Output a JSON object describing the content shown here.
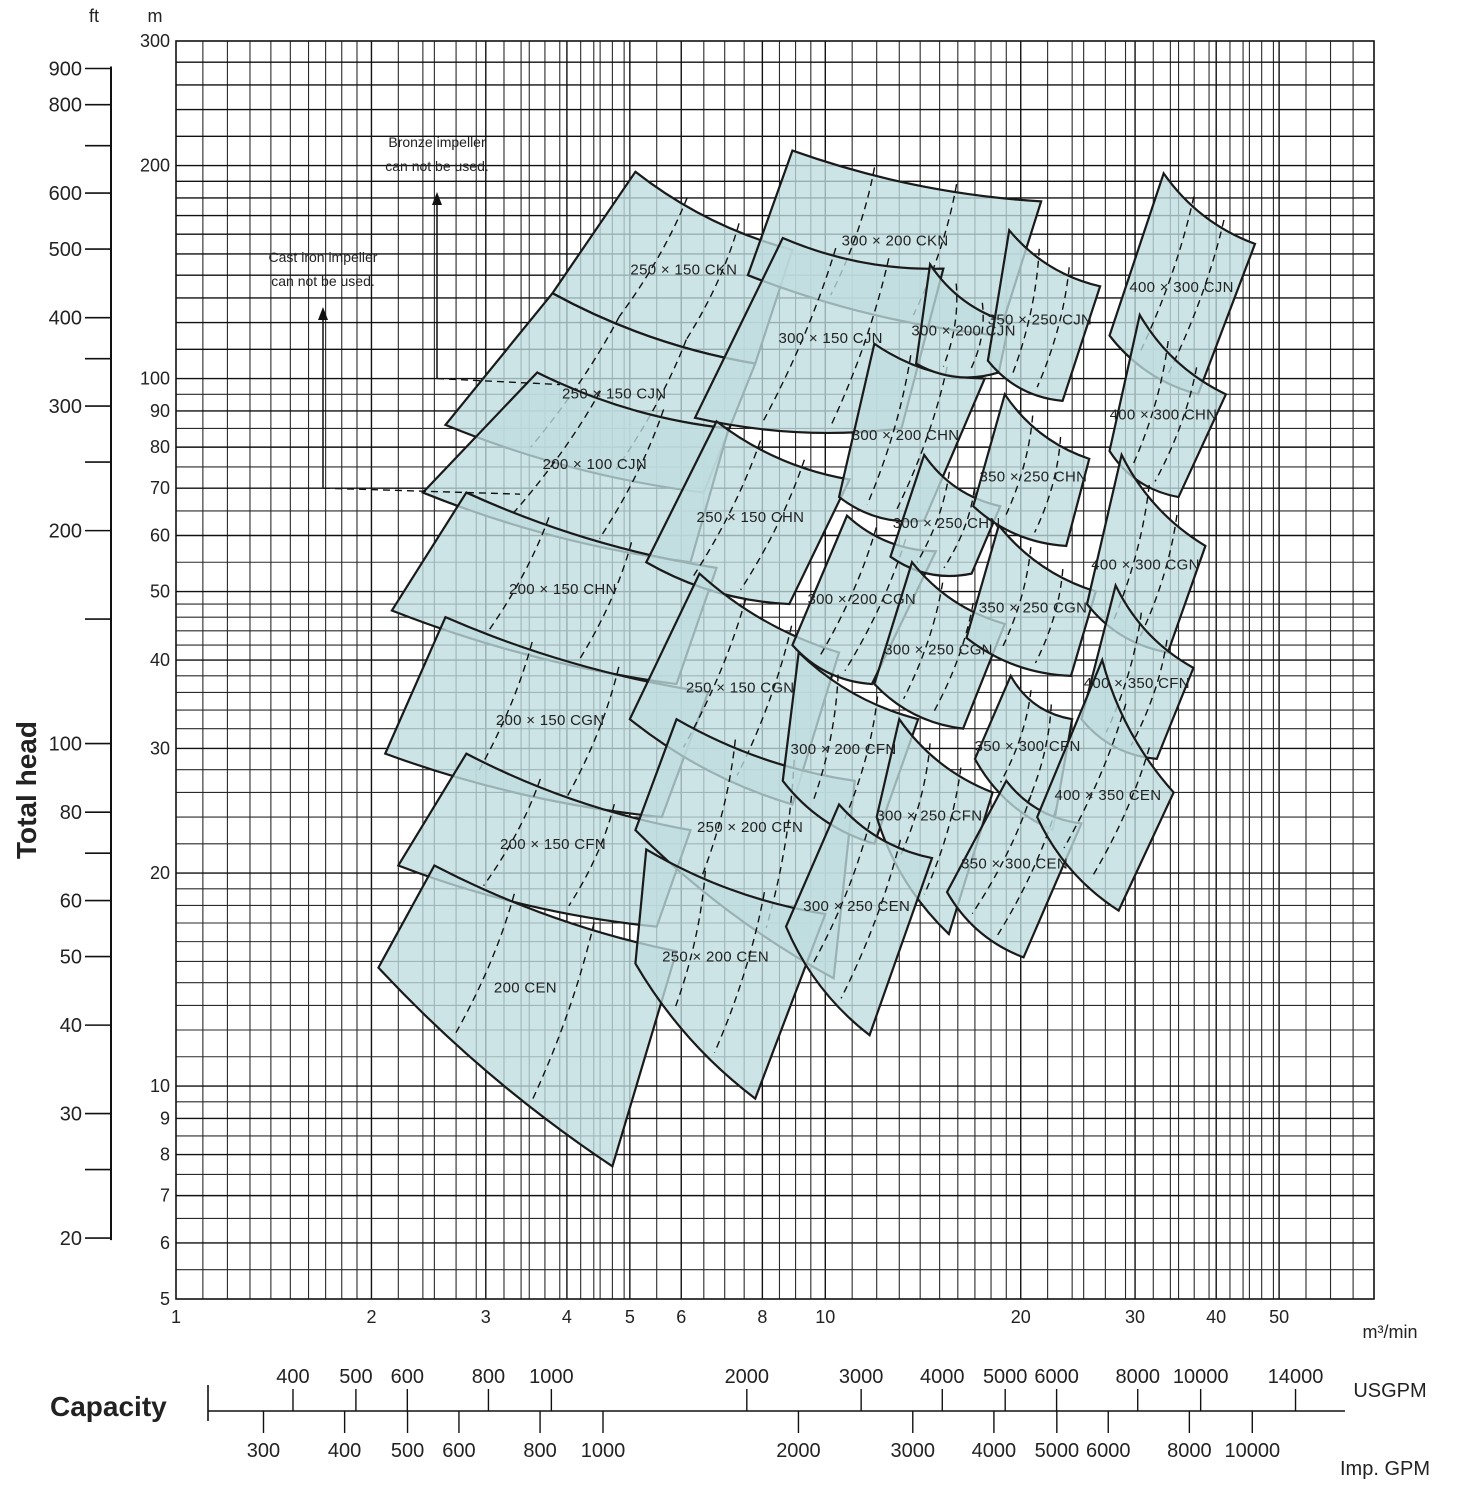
{
  "chart_data": {
    "type": "selection_chart",
    "xlabel": "Capacity",
    "ylabel": "Total head",
    "x_unit": "m³/min",
    "y_units": {
      "metric": "m",
      "imperial": "ft"
    },
    "x_scale": "log",
    "y_scale": "log",
    "xlim": [
      1,
      70
    ],
    "ylim": [
      5,
      300
    ],
    "grid": true,
    "x_ticks": [
      {
        "v": 1,
        "label": "1"
      },
      {
        "v": 2,
        "label": "2"
      },
      {
        "v": 3,
        "label": "3"
      },
      {
        "v": 4,
        "label": "4"
      },
      {
        "v": 5,
        "label": "5"
      },
      {
        "v": 6,
        "label": "6"
      },
      {
        "v": 8,
        "label": "8"
      },
      {
        "v": 10,
        "label": "10"
      },
      {
        "v": 20,
        "label": "20"
      },
      {
        "v": 30,
        "label": "30"
      },
      {
        "v": 40,
        "label": "40"
      },
      {
        "v": 50,
        "label": "50"
      }
    ],
    "y_ticks_m": [
      {
        "v": 300,
        "label": "300"
      },
      {
        "v": 200,
        "label": "200"
      },
      {
        "v": 100,
        "label": "100"
      },
      {
        "v": 90,
        "label": "90"
      },
      {
        "v": 80,
        "label": "80"
      },
      {
        "v": 70,
        "label": "70"
      },
      {
        "v": 60,
        "label": "60"
      },
      {
        "v": 50,
        "label": "50"
      },
      {
        "v": 40,
        "label": "40"
      },
      {
        "v": 30,
        "label": "30"
      },
      {
        "v": 20,
        "label": "20"
      },
      {
        "v": 10,
        "label": "10"
      },
      {
        "v": 9,
        "label": "9"
      },
      {
        "v": 8,
        "label": "8"
      },
      {
        "v": 7,
        "label": "7"
      },
      {
        "v": 6,
        "label": "6"
      },
      {
        "v": 5,
        "label": "5"
      }
    ],
    "y_ticks_ft": [
      {
        "v": 900,
        "label": "900"
      },
      {
        "v": 800,
        "label": "800"
      },
      {
        "v": 700,
        "label": ""
      },
      {
        "v": 600,
        "label": "600"
      },
      {
        "v": 500,
        "label": "500"
      },
      {
        "v": 400,
        "label": "400"
      },
      {
        "v": 350,
        "label": ""
      },
      {
        "v": 300,
        "label": "300"
      },
      {
        "v": 250,
        "label": ""
      },
      {
        "v": 200,
        "label": "200"
      },
      {
        "v": 150,
        "label": ""
      },
      {
        "v": 100,
        "label": "100"
      },
      {
        "v": 80,
        "label": "80"
      },
      {
        "v": 70,
        "label": ""
      },
      {
        "v": 60,
        "label": "60"
      },
      {
        "v": 50,
        "label": "50"
      },
      {
        "v": 40,
        "label": "40"
      },
      {
        "v": 30,
        "label": "30"
      },
      {
        "v": 25,
        "label": ""
      },
      {
        "v": 20,
        "label": "20"
      }
    ],
    "usgpm_unit": "USGPM",
    "usgpm_ticks": [
      {
        "v": 400,
        "label": "400"
      },
      {
        "v": 500,
        "label": "500"
      },
      {
        "v": 600,
        "label": "600"
      },
      {
        "v": 800,
        "label": "800"
      },
      {
        "v": 1000,
        "label": "1000"
      },
      {
        "v": 2000,
        "label": "2000"
      },
      {
        "v": 3000,
        "label": "3000"
      },
      {
        "v": 4000,
        "label": "4000"
      },
      {
        "v": 5000,
        "label": "5000"
      },
      {
        "v": 6000,
        "label": "6000"
      },
      {
        "v": 8000,
        "label": "8000"
      },
      {
        "v": 10000,
        "label": "10000"
      },
      {
        "v": 14000,
        "label": "14000"
      }
    ],
    "impgpm_unit": "Imp. GPM",
    "impgpm_ticks": [
      {
        "v": 300,
        "label": "300"
      },
      {
        "v": 400,
        "label": "400"
      },
      {
        "v": 500,
        "label": "500"
      },
      {
        "v": 600,
        "label": "600"
      },
      {
        "v": 800,
        "label": "800"
      },
      {
        "v": 1000,
        "label": "1000"
      },
      {
        "v": 2000,
        "label": "2000"
      },
      {
        "v": 3000,
        "label": "3000"
      },
      {
        "v": 4000,
        "label": "4000"
      },
      {
        "v": 5000,
        "label": "5000"
      },
      {
        "v": 6000,
        "label": "6000"
      },
      {
        "v": 8000,
        "label": "8000"
      },
      {
        "v": 10000,
        "label": "10000"
      }
    ],
    "annotations": [
      {
        "lines": [
          "Bronze impeller",
          "can not be used."
        ],
        "head_m": 100
      },
      {
        "lines": [
          "Cast iron impeller",
          "can not be used."
        ],
        "head_m": 70
      }
    ],
    "regions": [
      {
        "model": "250 × 150 CKN",
        "ul": [
          5.1,
          196
        ],
        "ur": [
          8.9,
          152
        ],
        "lr": [
          7.8,
          105
        ],
        "ll": [
          3.8,
          132
        ]
      },
      {
        "model": "250 × 150 CJN",
        "ul": [
          3.8,
          132
        ],
        "ur": [
          7.8,
          105
        ],
        "lr": [
          6.5,
          69
        ],
        "ll": [
          2.6,
          86
        ]
      },
      {
        "model": "200 × 100 CJN",
        "ul": [
          3.6,
          102
        ],
        "ur": [
          7.1,
          85
        ],
        "lr": [
          6.2,
          55
        ],
        "ll": [
          2.4,
          69
        ]
      },
      {
        "model": "200 × 150 CHN",
        "ul": [
          2.8,
          69
        ],
        "ur": [
          6.8,
          54
        ],
        "lr": [
          5.9,
          37
        ],
        "ll": [
          2.15,
          47
        ]
      },
      {
        "model": "200 × 150 CGN",
        "ul": [
          2.6,
          46
        ],
        "ur": [
          6.6,
          36
        ],
        "lr": [
          5.6,
          24
        ],
        "ll": [
          2.1,
          29.5
        ]
      },
      {
        "model": "200 × 150 CFN",
        "ul": [
          2.8,
          29.5
        ],
        "ur": [
          6.2,
          23
        ],
        "lr": [
          5.5,
          16.8
        ],
        "ll": [
          2.2,
          20.5
        ]
      },
      {
        "model": "200 CEN",
        "ul": [
          2.5,
          20.5
        ],
        "ur": [
          5.9,
          15.5
        ],
        "lr": [
          4.7,
          7.7
        ],
        "ll": [
          2.05,
          14.7
        ]
      },
      {
        "model": "300 × 200 CKN",
        "ul": [
          8.9,
          210
        ],
        "ur": [
          21.5,
          178
        ],
        "lr": [
          18.5,
          115
        ],
        "ll": [
          7.6,
          140
        ]
      },
      {
        "model": "300 × 150 CJN",
        "ul": [
          8.6,
          158
        ],
        "ur": [
          15.2,
          143
        ],
        "lr": [
          13.1,
          85
        ],
        "ll": [
          6.3,
          88
        ]
      },
      {
        "model": "250 × 150 CHN",
        "ul": [
          6.8,
          87
        ],
        "ur": [
          10.9,
          72
        ],
        "lr": [
          8.8,
          48
        ],
        "ll": [
          5.3,
          55
        ]
      },
      {
        "model": "250 × 150 CGN",
        "ul": [
          6.4,
          53
        ],
        "ur": [
          10.5,
          41
        ],
        "lr": [
          8.9,
          25
        ],
        "ll": [
          5.0,
          33
        ]
      },
      {
        "model": "250 × 200 CFN",
        "ul": [
          5.9,
          33
        ],
        "ur": [
          11.1,
          27
        ],
        "lr": [
          10.3,
          14.2
        ],
        "ll": [
          5.1,
          23
        ]
      },
      {
        "model": "250 × 200 CEN",
        "ul": [
          5.3,
          21.6
        ],
        "ur": [
          10.0,
          17.5
        ],
        "lr": [
          7.8,
          9.6
        ],
        "ll": [
          5.1,
          14.9
        ]
      },
      {
        "model": "300 × 200 CHN",
        "ul": [
          11.9,
          112
        ],
        "ur": [
          17.6,
          100
        ],
        "lr": [
          14.2,
          63
        ],
        "ll": [
          10.5,
          68
        ]
      },
      {
        "model": "300 × 200 CJN",
        "ul": [
          14.5,
          145
        ],
        "ur": [
          19.2,
          120
        ],
        "lr": [
          18.5,
          102
        ],
        "ll": [
          13.8,
          105
        ]
      },
      {
        "model": "300 × 200 CGN",
        "ul": [
          10.8,
          64
        ],
        "ur": [
          14.8,
          57
        ],
        "lr": [
          11.8,
          37
        ],
        "ll": [
          8.9,
          42
        ]
      },
      {
        "model": "300 × 200 CFN",
        "ul": [
          9.1,
          41
        ],
        "ur": [
          13.9,
          33
        ],
        "lr": [
          11.9,
          22
        ],
        "ll": [
          8.6,
          27
        ]
      },
      {
        "model": "300 × 250 CHN",
        "ul": [
          14.2,
          78
        ],
        "ur": [
          18.6,
          66
        ],
        "lr": [
          16.8,
          53
        ],
        "ll": [
          12.6,
          56
        ]
      },
      {
        "model": "300 × 250 CGN",
        "ul": [
          13.6,
          55
        ],
        "ur": [
          18.9,
          45
        ],
        "lr": [
          16.3,
          32
        ],
        "ll": [
          11.9,
          37
        ]
      },
      {
        "model": "300 × 250 CFN",
        "ul": [
          13.0,
          33
        ],
        "ur": [
          18.1,
          26
        ],
        "lr": [
          15.5,
          16.4
        ],
        "ll": [
          12.0,
          24
        ]
      },
      {
        "model": "300 × 250 CEN",
        "ul": [
          10.5,
          25
        ],
        "ur": [
          14.6,
          21
        ],
        "lr": [
          11.7,
          11.8
        ],
        "ll": [
          8.7,
          16.8
        ]
      },
      {
        "model": "350 × 250 CJN",
        "ul": [
          19.2,
          162
        ],
        "ur": [
          26.5,
          135
        ],
        "lr": [
          23.2,
          93
        ],
        "ll": [
          17.8,
          106
        ]
      },
      {
        "model": "350 × 250 CHN",
        "ul": [
          18.9,
          95
        ],
        "ur": [
          25.5,
          77
        ],
        "lr": [
          23.5,
          58
        ],
        "ll": [
          16.9,
          66
        ]
      },
      {
        "model": "350 × 250 CGN",
        "ul": [
          18.5,
          62
        ],
        "ur": [
          26.1,
          50
        ],
        "lr": [
          23.9,
          38
        ],
        "ll": [
          16.5,
          43
        ]
      },
      {
        "model": "350 × 300 CFN",
        "ul": [
          19.3,
          38
        ],
        "ur": [
          24.0,
          33
        ],
        "lr": [
          22.4,
          23
        ],
        "ll": [
          17.0,
          29
        ]
      },
      {
        "model": "350 × 300 CEN",
        "ul": [
          19.0,
          27
        ],
        "ur": [
          24.8,
          23.5
        ],
        "lr": [
          20.2,
          15.2
        ],
        "ll": [
          15.4,
          18.8
        ]
      },
      {
        "model": "400 × 300 CJN",
        "ul": [
          33.2,
          195
        ],
        "ur": [
          45.9,
          155
        ],
        "lr": [
          37.5,
          95
        ],
        "ll": [
          27.4,
          115
        ]
      },
      {
        "model": "400 × 300 CHN",
        "ul": [
          30.5,
          123
        ],
        "ur": [
          41.4,
          95
        ],
        "lr": [
          35.0,
          68
        ],
        "ll": [
          27.4,
          79
        ]
      },
      {
        "model": "400 × 300 CGN",
        "ul": [
          28.6,
          78
        ],
        "ur": [
          38.5,
          58
        ],
        "lr": [
          33.7,
          41
        ],
        "ll": [
          25.3,
          48
        ]
      },
      {
        "model": "400 × 350 CFN",
        "ul": [
          28.0,
          51
        ],
        "ur": [
          36.9,
          39
        ],
        "lr": [
          32.4,
          29
        ],
        "ll": [
          24.8,
          33
        ]
      },
      {
        "model": "400 × 350 CEN",
        "ul": [
          26.7,
          40
        ],
        "ur": [
          34.4,
          26
        ],
        "lr": [
          28.3,
          17.7
        ],
        "ll": [
          21.2,
          24
        ]
      }
    ]
  }
}
